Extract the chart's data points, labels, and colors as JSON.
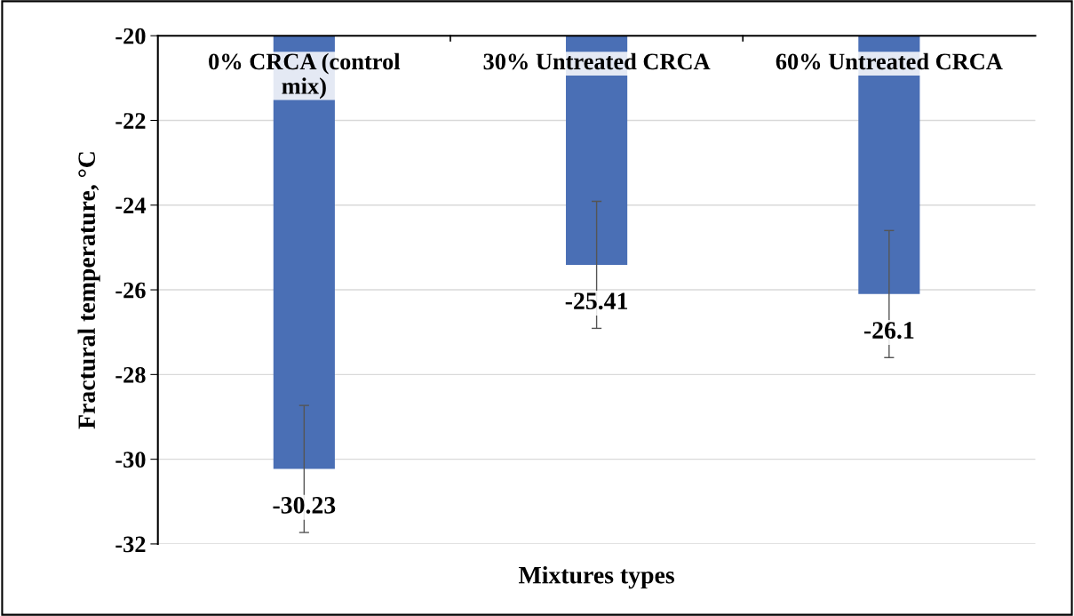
{
  "chart_data": {
    "type": "bar",
    "xlabel": "Mixtures types",
    "ylabel": "Fractural temperature, °C",
    "categories": [
      "0% CRCA (control\nmix)",
      "30% Untreated CRCA",
      "60% Untreated CRCA"
    ],
    "values": [
      -30.23,
      -25.41,
      -26.1
    ],
    "errors": [
      1.5,
      1.5,
      1.5
    ],
    "color": "#4a6fb5",
    "ylim": [
      -32,
      -20
    ],
    "yticks": [
      -32,
      -30,
      -28,
      -26,
      -24,
      -22,
      -20
    ],
    "grid": "y",
    "data_labels": true
  }
}
